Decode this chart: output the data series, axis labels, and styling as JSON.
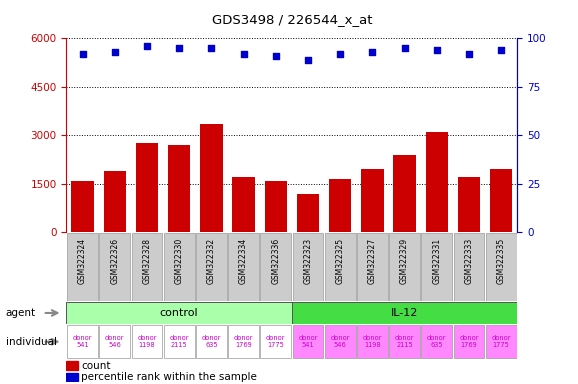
{
  "title": "GDS3498 / 226544_x_at",
  "samples": [
    "GSM322324",
    "GSM322326",
    "GSM322328",
    "GSM322330",
    "GSM322332",
    "GSM322334",
    "GSM322336",
    "GSM322323",
    "GSM322325",
    "GSM322327",
    "GSM322329",
    "GSM322331",
    "GSM322333",
    "GSM322335"
  ],
  "counts": [
    1600,
    1900,
    2750,
    2700,
    3350,
    1700,
    1600,
    1200,
    1650,
    1950,
    2400,
    3100,
    1700,
    1950
  ],
  "percentiles": [
    92,
    93,
    96,
    95,
    95,
    92,
    91,
    89,
    92,
    93,
    95,
    94,
    92,
    94
  ],
  "bar_color": "#cc0000",
  "dot_color": "#0000cc",
  "ylim_left": [
    0,
    6000
  ],
  "ylim_right": [
    0,
    100
  ],
  "yticks_left": [
    0,
    1500,
    3000,
    4500,
    6000
  ],
  "yticks_right": [
    0,
    25,
    50,
    75,
    100
  ],
  "agent_control_label": "control",
  "agent_il12_label": "IL-12",
  "individuals": [
    "donor\n541",
    "donor\n546",
    "donor\n1198",
    "donor\n2115",
    "donor\n635",
    "donor\n1769",
    "donor\n1775",
    "donor\n541",
    "donor\n546",
    "donor\n1198",
    "donor\n2115",
    "donor\n635",
    "donor\n1769",
    "donor\n1775"
  ],
  "color_control_agent": "#aaffaa",
  "color_il12_agent": "#44dd44",
  "color_control_ind": "#ffffff",
  "color_il12_ind": "#ff88ff",
  "xtick_box_color": "#cccccc",
  "legend_count_color": "#cc0000",
  "legend_dot_color": "#0000cc",
  "arrow_color": "#888888"
}
